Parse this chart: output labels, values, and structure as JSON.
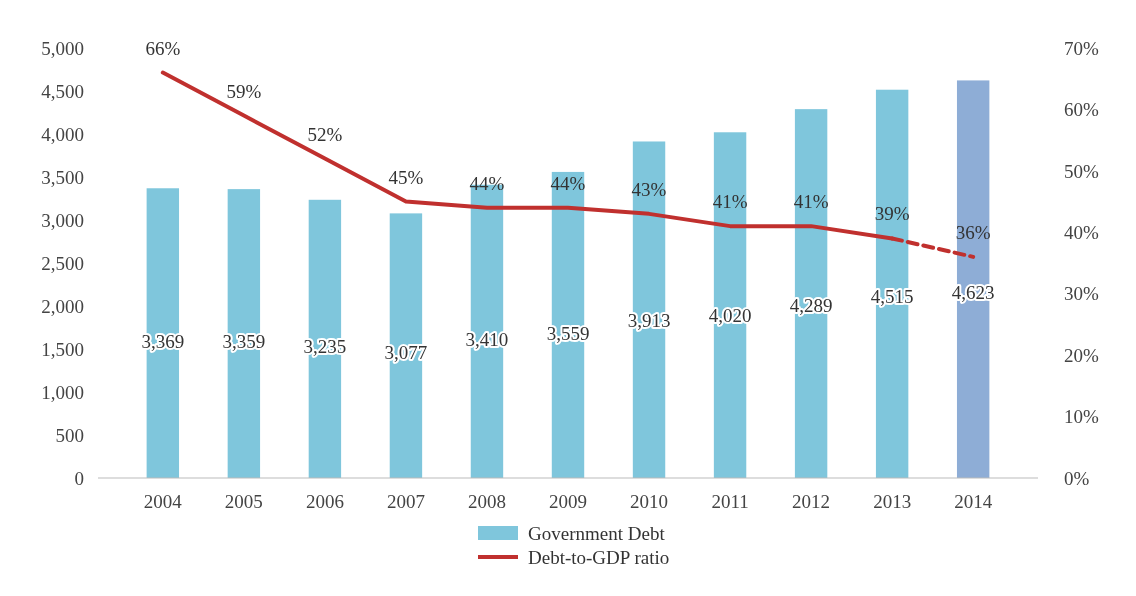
{
  "chart_data": {
    "type": "bar",
    "categories": [
      "2004",
      "2005",
      "2006",
      "2007",
      "2008",
      "2009",
      "2010",
      "2011",
      "2012",
      "2013",
      "2014"
    ],
    "series": [
      {
        "name": "Government Debt",
        "color": "#7fc6dc",
        "colors": [
          "#7fc6dc",
          "#7fc6dc",
          "#7fc6dc",
          "#7fc6dc",
          "#7fc6dc",
          "#7fc6dc",
          "#7fc6dc",
          "#7fc6dc",
          "#7fc6dc",
          "#7fc6dc",
          "#8eadd6"
        ],
        "values": [
          3369,
          3359,
          3235,
          3077,
          3410,
          3559,
          3913,
          4020,
          4289,
          4515,
          4623
        ],
        "value_labels": [
          "3,369",
          "3,359",
          "3,235",
          "3,077",
          "3,410",
          "3,559",
          "3,913",
          "4,020",
          "4,289",
          "4,515",
          "4,623"
        ]
      },
      {
        "name": "Debt-to-GDP ratio",
        "type": "line",
        "axis": "y2",
        "color": "#c0302e",
        "line_style": "solid",
        "values": [
          66,
          59,
          52,
          45,
          44,
          44,
          43,
          41,
          41,
          39,
          null
        ],
        "value_labels": [
          "66%",
          "59%",
          "52%",
          "45%",
          "44%",
          "44%",
          "43%",
          "41%",
          "41%",
          "39%",
          null
        ]
      },
      {
        "type": "line",
        "axis": "y2",
        "color": "#c0302e",
        "line_style": "dashed",
        "values": [
          null,
          null,
          null,
          null,
          null,
          null,
          null,
          null,
          null,
          39,
          36
        ],
        "value_labels": [
          null,
          null,
          null,
          null,
          null,
          null,
          null,
          null,
          null,
          null,
          "36%"
        ]
      }
    ],
    "ylim": [
      0,
      5000
    ],
    "yticks": [
      {
        "value": 0,
        "label": "0"
      },
      {
        "value": 500,
        "label": "500"
      },
      {
        "value": 1000,
        "label": "1,000"
      },
      {
        "value": 1500,
        "label": "1,500"
      },
      {
        "value": 2000,
        "label": "2,000"
      },
      {
        "value": 2500,
        "label": "2,500"
      },
      {
        "value": 3000,
        "label": "3,000"
      },
      {
        "value": 3500,
        "label": "3,500"
      },
      {
        "value": 4000,
        "label": "4,000"
      },
      {
        "value": 4500,
        "label": "4,500"
      },
      {
        "value": 5000,
        "label": "5,000"
      }
    ],
    "y2lim": [
      0,
      70
    ],
    "y2ticks": [
      {
        "value": 0,
        "label": "0%"
      },
      {
        "value": 10,
        "label": "10%"
      },
      {
        "value": 20,
        "label": "20%"
      },
      {
        "value": 30,
        "label": "30%"
      },
      {
        "value": 40,
        "label": "40%"
      },
      {
        "value": 50,
        "label": "50%"
      },
      {
        "value": 60,
        "label": "60%"
      },
      {
        "value": 70,
        "label": "70%"
      }
    ],
    "grid": false,
    "legend": "bottom"
  }
}
